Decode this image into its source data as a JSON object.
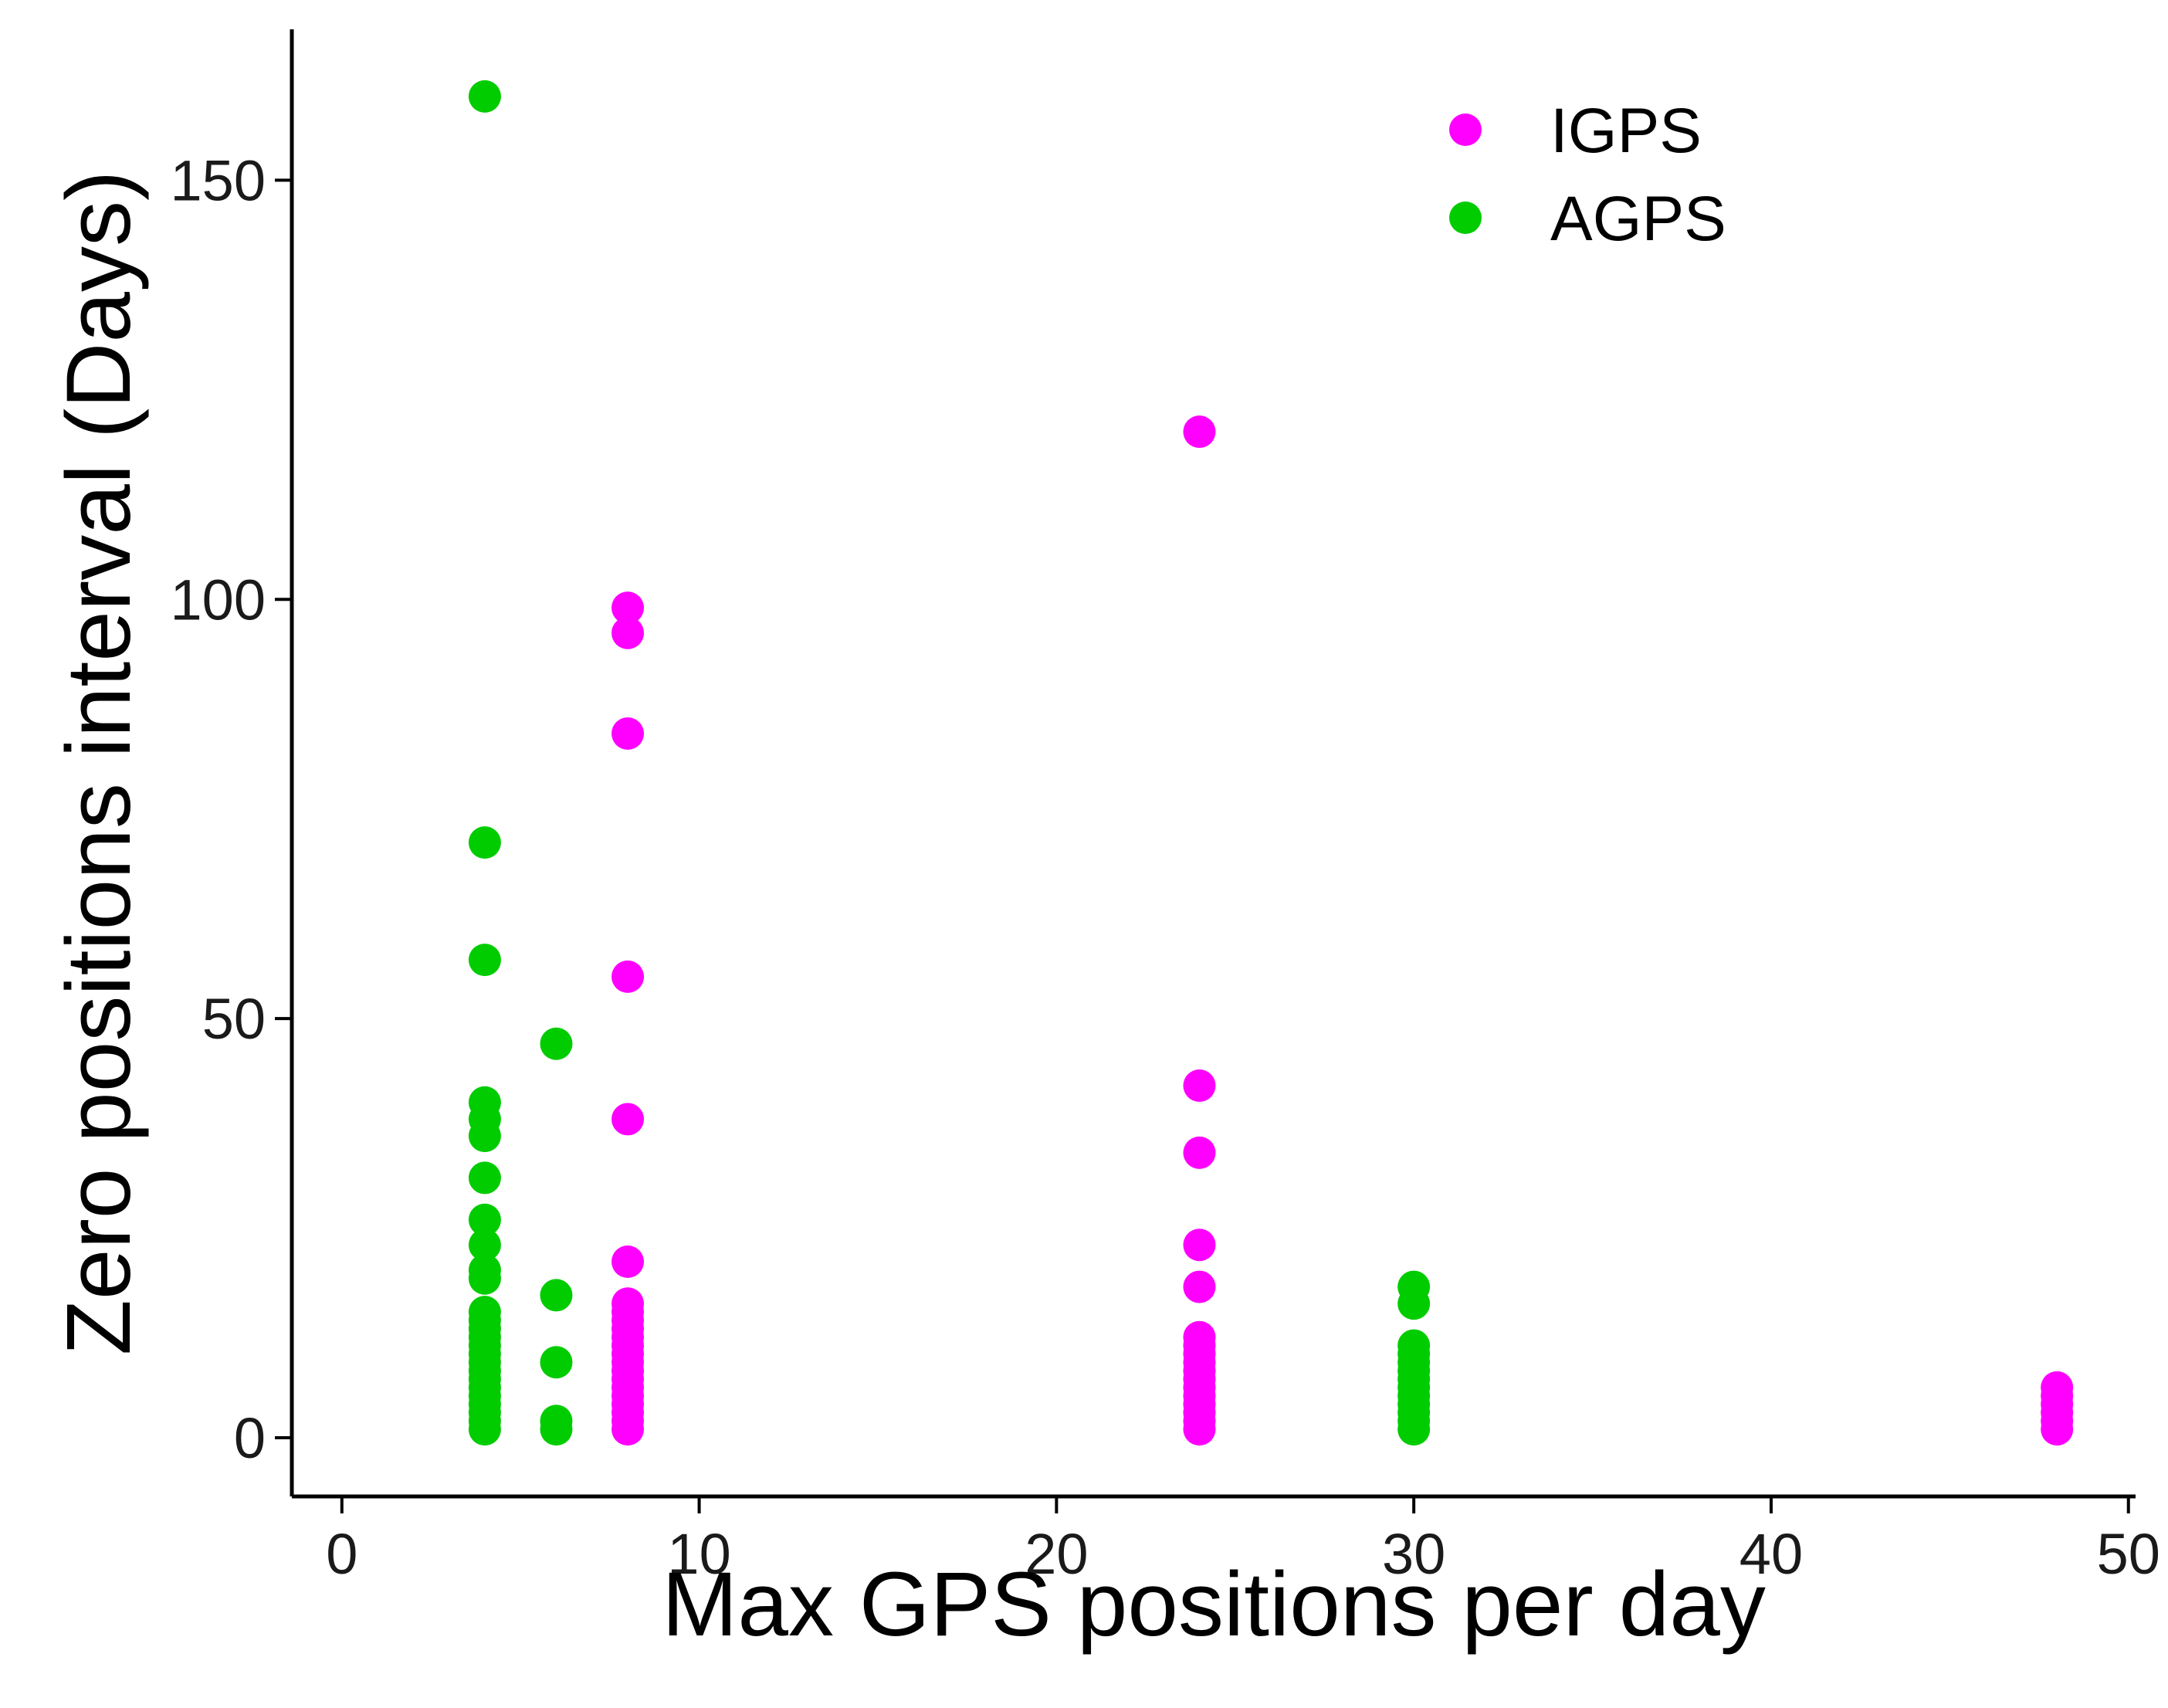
{
  "chart_data": {
    "type": "scatter",
    "title": "",
    "xlabel": "Max GPS positions per day",
    "ylabel": "Zero positions interval (Days)",
    "xlim": [
      -1.4,
      50.2
    ],
    "ylim": [
      -7,
      168
    ],
    "x_ticks": [
      0,
      10,
      20,
      30,
      40,
      50
    ],
    "y_ticks": [
      0,
      50,
      100,
      150
    ],
    "x_tick_labels": [
      "0",
      "10",
      "20",
      "30",
      "40",
      "50"
    ],
    "y_tick_labels": [
      "0",
      "50",
      "100",
      "150"
    ],
    "grid": false,
    "legend_position": "top-right",
    "series": [
      {
        "name": "IGPS",
        "color": "#ff00ff",
        "points": [
          [
            8,
            99
          ],
          [
            8,
            96
          ],
          [
            8,
            84
          ],
          [
            8,
            55
          ],
          [
            8,
            38
          ],
          [
            8,
            21
          ],
          [
            8,
            16
          ],
          [
            8,
            15
          ],
          [
            8,
            14
          ],
          [
            8,
            13
          ],
          [
            8,
            12
          ],
          [
            8,
            11
          ],
          [
            8,
            10
          ],
          [
            8,
            9
          ],
          [
            8,
            8
          ],
          [
            8,
            7
          ],
          [
            8,
            6
          ],
          [
            8,
            5
          ],
          [
            8,
            4
          ],
          [
            8,
            3
          ],
          [
            8,
            2
          ],
          [
            8,
            1
          ],
          [
            24,
            120
          ],
          [
            24,
            42
          ],
          [
            24,
            34
          ],
          [
            24,
            23
          ],
          [
            24,
            18
          ],
          [
            24,
            12
          ],
          [
            24,
            11
          ],
          [
            24,
            10
          ],
          [
            24,
            9
          ],
          [
            24,
            8
          ],
          [
            24,
            7
          ],
          [
            24,
            6
          ],
          [
            24,
            5
          ],
          [
            24,
            4
          ],
          [
            24,
            3
          ],
          [
            24,
            2
          ],
          [
            24,
            1
          ],
          [
            48,
            6
          ],
          [
            48,
            5
          ],
          [
            48,
            4
          ],
          [
            48,
            3
          ],
          [
            48,
            2
          ],
          [
            48,
            1
          ]
        ]
      },
      {
        "name": "AGPS",
        "color": "#00cc00",
        "points": [
          [
            4,
            160
          ],
          [
            4,
            71
          ],
          [
            4,
            57
          ],
          [
            4,
            40
          ],
          [
            4,
            38
          ],
          [
            4,
            36
          ],
          [
            4,
            31
          ],
          [
            4,
            26
          ],
          [
            4,
            23
          ],
          [
            4,
            20
          ],
          [
            4,
            19
          ],
          [
            4,
            15
          ],
          [
            4,
            14
          ],
          [
            4,
            13
          ],
          [
            4,
            12
          ],
          [
            4,
            11
          ],
          [
            4,
            10
          ],
          [
            4,
            9
          ],
          [
            4,
            8
          ],
          [
            4,
            7
          ],
          [
            4,
            6
          ],
          [
            4,
            5
          ],
          [
            4,
            4
          ],
          [
            4,
            3
          ],
          [
            4,
            2
          ],
          [
            4,
            1
          ],
          [
            6,
            47
          ],
          [
            6,
            17
          ],
          [
            6,
            9
          ],
          [
            6,
            2
          ],
          [
            6,
            1
          ],
          [
            30,
            18
          ],
          [
            30,
            16
          ],
          [
            30,
            11
          ],
          [
            30,
            10
          ],
          [
            30,
            9
          ],
          [
            30,
            8
          ],
          [
            30,
            7
          ],
          [
            30,
            6
          ],
          [
            30,
            5
          ],
          [
            30,
            4
          ],
          [
            30,
            3
          ],
          [
            30,
            2
          ],
          [
            30,
            1
          ]
        ]
      }
    ]
  }
}
